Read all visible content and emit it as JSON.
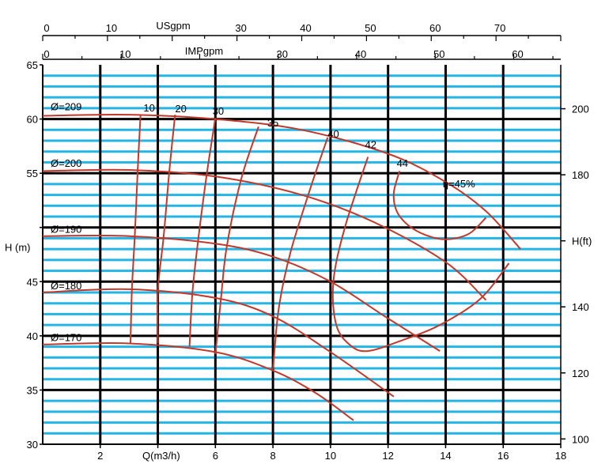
{
  "chart_data": {
    "type": "line",
    "title": "",
    "x_axis": {
      "label": "Q(m3/h)",
      "range": [
        0,
        18
      ],
      "ticks": [
        2,
        4,
        6,
        8,
        10,
        12,
        14,
        16,
        18
      ],
      "tick_labels": [
        "2",
        "",
        "6",
        "8",
        "10",
        "12",
        "14",
        "16",
        "18"
      ]
    },
    "top_axis_usgpm": {
      "label": "USgpm",
      "range": [
        0,
        80
      ],
      "ticks": [
        0,
        10,
        20,
        30,
        40,
        50,
        60,
        70,
        80
      ],
      "tick_labels": [
        "0",
        "10",
        "",
        "30",
        "40",
        "50",
        "60",
        "70",
        ""
      ]
    },
    "top_axis_impgpm": {
      "label": "IMPgpm",
      "range": [
        0,
        66
      ],
      "ticks": [
        0,
        10,
        20,
        30,
        40,
        50,
        60
      ],
      "tick_labels": [
        "0",
        "10",
        "",
        "30",
        "40",
        "50",
        "60"
      ]
    },
    "y_axis_left": {
      "label": "H (m)",
      "range": [
        30,
        65
      ],
      "ticks": [
        30,
        35,
        40,
        45,
        50,
        55,
        60,
        65
      ],
      "tick_labels": [
        "30",
        "35",
        "40",
        "45",
        "",
        "55",
        "60",
        "65"
      ]
    },
    "y_axis_right": {
      "label": "H(ft)",
      "range": [
        98.4,
        213.3
      ],
      "ticks": [
        100,
        120,
        140,
        160,
        180,
        200
      ],
      "tick_labels": [
        "100",
        "120",
        "140",
        "",
        "180",
        "200"
      ]
    },
    "grid": true,
    "head_curves": [
      {
        "name": "Ø=209",
        "points": [
          [
            0,
            60.3
          ],
          [
            3,
            60.4
          ],
          [
            6,
            60.0
          ],
          [
            9,
            59.0
          ],
          [
            12,
            56.8
          ],
          [
            14,
            54.2
          ],
          [
            15.4,
            51.5
          ],
          [
            16.6,
            48.0
          ]
        ]
      },
      {
        "name": "Ø=200",
        "points": [
          [
            0,
            55.2
          ],
          [
            3,
            55.3
          ],
          [
            6,
            54.7
          ],
          [
            9,
            53.0
          ],
          [
            11.5,
            50.5
          ],
          [
            14,
            46.8
          ],
          [
            15.4,
            43.3
          ]
        ]
      },
      {
        "name": "Ø=190",
        "points": [
          [
            0,
            49.2
          ],
          [
            3,
            49.2
          ],
          [
            6,
            48.5
          ],
          [
            8,
            47.3
          ],
          [
            10,
            45.0
          ],
          [
            12,
            41.6
          ],
          [
            13.8,
            38.6
          ]
        ]
      },
      {
        "name": "Ø=180",
        "points": [
          [
            0,
            44.0
          ],
          [
            3,
            44.3
          ],
          [
            6,
            43.5
          ],
          [
            8,
            41.8
          ],
          [
            10,
            38.5
          ],
          [
            12.2,
            34.4
          ]
        ]
      },
      {
        "name": "Ø=170",
        "points": [
          [
            0,
            39.2
          ],
          [
            3,
            39.3
          ],
          [
            6,
            38.5
          ],
          [
            8,
            36.8
          ],
          [
            9.5,
            34.7
          ],
          [
            10.8,
            32.2
          ]
        ]
      }
    ],
    "efficiency_curves": [
      {
        "name": "10",
        "points": [
          [
            3.4,
            60.4
          ],
          [
            3.3,
            55.3
          ],
          [
            3.2,
            49.2
          ],
          [
            3.1,
            44.3
          ],
          [
            3.05,
            39.3
          ]
        ]
      },
      {
        "name": "20",
        "points": [
          [
            4.6,
            60.4
          ],
          [
            4.4,
            55.2
          ],
          [
            4.2,
            49.1
          ],
          [
            4.0,
            44.2
          ],
          [
            4.0,
            39.3
          ]
        ]
      },
      {
        "name": "30",
        "points": [
          [
            6.0,
            60.1
          ],
          [
            5.7,
            54.9
          ],
          [
            5.4,
            48.8
          ],
          [
            5.2,
            43.9
          ],
          [
            5.1,
            39.0
          ]
        ]
      },
      {
        "name": "35",
        "points": [
          [
            7.5,
            59.3
          ],
          [
            6.9,
            54.5
          ],
          [
            6.4,
            48.3
          ],
          [
            6.2,
            43.6
          ],
          [
            6.0,
            38.3
          ]
        ]
      },
      {
        "name": "40",
        "points": [
          [
            9.9,
            58.3
          ],
          [
            9.3,
            53.6
          ],
          [
            8.6,
            47.6
          ],
          [
            8.2,
            42.5
          ],
          [
            8.0,
            36.9
          ]
        ]
      },
      {
        "name": "42",
        "points": [
          [
            11.3,
            56.5
          ],
          [
            10.5,
            50.0
          ],
          [
            10.1,
            45.0
          ],
          [
            10.2,
            41.0
          ],
          [
            10.7,
            39.1
          ],
          [
            11.3,
            38.6
          ],
          [
            12.4,
            39.5
          ],
          [
            13.8,
            41.0
          ],
          [
            15.2,
            43.4
          ],
          [
            16.2,
            46.7
          ]
        ]
      },
      {
        "name": "44",
        "points": [
          [
            12.4,
            55.2
          ],
          [
            12.2,
            53.2
          ],
          [
            12.3,
            51.5
          ],
          [
            12.7,
            50.2
          ],
          [
            13.3,
            49.3
          ],
          [
            14.0,
            48.9
          ],
          [
            14.8,
            49.4
          ],
          [
            15.4,
            50.9
          ]
        ]
      }
    ],
    "labels": {
      "head": [
        "Ø=209",
        "Ø=200",
        "Ø=190",
        "Ø=180",
        "Ø=170"
      ],
      "efficiency": [
        "10",
        "20",
        "30",
        "35",
        "40",
        "42",
        "44",
        "ή=45%"
      ]
    },
    "colors": {
      "curve": "#c0392b",
      "grid_major": "#000000",
      "grid_minor": "#22b5e6",
      "background": "#ffffff"
    }
  }
}
